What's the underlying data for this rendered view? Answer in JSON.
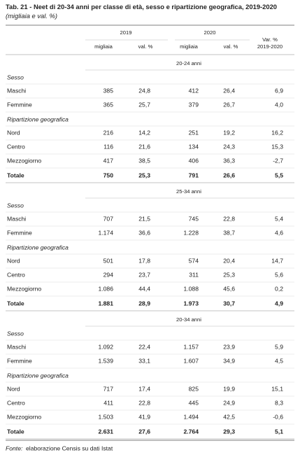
{
  "header": {
    "title": "Tab. 21 - Neet di 20-34 anni per classe di età, sesso e ripartizione geografica, 2019-2020",
    "subtitle": "(migliaia e val. %)"
  },
  "table": {
    "years": [
      "2019",
      "2020"
    ],
    "subcolumns": [
      "migliaia",
      "val. %",
      "migliaia",
      "val. %"
    ],
    "var_header": [
      "Var. %",
      "2019-2020"
    ],
    "sections": [
      {
        "label": "20-24 anni",
        "groups": [
          {
            "label": "Sesso",
            "rows": [
              [
                "Maschi",
                "385",
                "24,8",
                "412",
                "26,4",
                "6,9"
              ],
              [
                "Femmine",
                "365",
                "25,7",
                "379",
                "26,7",
                "4,0"
              ]
            ]
          },
          {
            "label": "Ripartizione geografica",
            "rows": [
              [
                "Nord",
                "216",
                "14,2",
                "251",
                "19,2",
                "16,2"
              ],
              [
                "Centro",
                "116",
                "21,6",
                "134",
                "24,3",
                "15,3"
              ],
              [
                "Mezzogiorno",
                "417",
                "38,5",
                "406",
                "36,3",
                "-2,7"
              ]
            ]
          }
        ],
        "total": [
          "Totale",
          "750",
          "25,3",
          "791",
          "26,6",
          "5,5"
        ]
      },
      {
        "label": "25-34 anni",
        "groups": [
          {
            "label": "Sesso",
            "rows": [
              [
                "Maschi",
                "707",
                "21,5",
                "745",
                "22,8",
                "5,4"
              ],
              [
                "Femmine",
                "1.174",
                "36,6",
                "1.228",
                "38,7",
                "4,6"
              ]
            ]
          },
          {
            "label": "Ripartizione geografica",
            "rows": [
              [
                "Nord",
                "501",
                "17,8",
                "574",
                "20,4",
                "14,7"
              ],
              [
                "Centro",
                "294",
                "23,7",
                "311",
                "25,3",
                "5,6"
              ],
              [
                "Mezzogiorno",
                "1.086",
                "44,4",
                "1.088",
                "45,6",
                "0,2"
              ]
            ]
          }
        ],
        "total": [
          "Totale",
          "1.881",
          "28,9",
          "1.973",
          "30,7",
          "4,9"
        ]
      },
      {
        "label": "20-34 anni",
        "groups": [
          {
            "label": "Sesso",
            "rows": [
              [
                "Maschi",
                "1.092",
                "22,4",
                "1.157",
                "23,9",
                "5,9"
              ],
              [
                "Femmine",
                "1.539",
                "33,1",
                "1.607",
                "34,9",
                "4,5"
              ]
            ]
          },
          {
            "label": "Ripartizione geografica",
            "rows": [
              [
                "Nord",
                "717",
                "17,4",
                "825",
                "19,9",
                "15,1"
              ],
              [
                "Centro",
                "411",
                "22,8",
                "445",
                "24,9",
                "8,3"
              ],
              [
                "Mezzogiorno",
                "1.503",
                "41,9",
                "1.494",
                "42,5",
                "-0,6"
              ]
            ]
          }
        ],
        "total": [
          "Totale",
          "2.631",
          "27,6",
          "2.764",
          "29,3",
          "5,1"
        ]
      }
    ]
  },
  "footer": {
    "source_label": "Fonte:",
    "source_text": "elaborazione Censis su dati Istat"
  }
}
